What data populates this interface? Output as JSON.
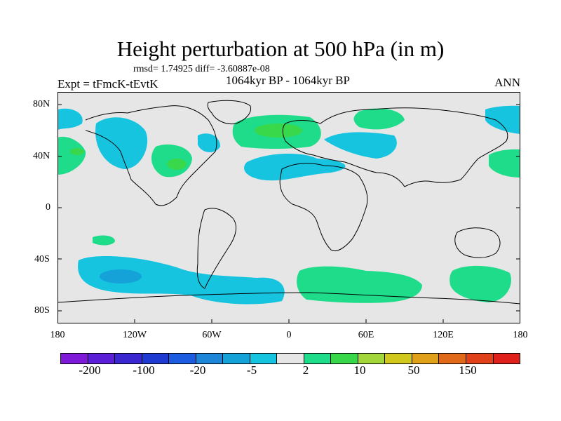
{
  "title": "Height perturbation at 500 hPa (in m)",
  "rmsd_line": "rmsd= 1.74925  diff= -3.60887e-08",
  "expt_label": "Expt = tFmcK-tEvtK",
  "period_label": "1064kyr BP - 1064kyr BP",
  "season_label": "ANN",
  "lat_labels": [
    "80N",
    "40N",
    "0",
    "40S",
    "80S"
  ],
  "lon_labels": [
    "180",
    "120W",
    "60W",
    "0",
    "60E",
    "120E",
    "180"
  ],
  "colorbar": {
    "colors": [
      "#7f1bd8",
      "#5a1fd6",
      "#3b27cf",
      "#1f3ad0",
      "#1c5ce0",
      "#1d86d9",
      "#15a2d8",
      "#17c4e0",
      "#e6e6e6",
      "#1edc8a",
      "#39d84a",
      "#a2d63a",
      "#d0c81c",
      "#e0a01a",
      "#e06a1a",
      "#e0401a",
      "#e0201a"
    ],
    "labels": [
      "-200",
      "-100",
      "-20",
      "-5",
      "2",
      "10",
      "50",
      "150"
    ]
  },
  "colors": {
    "map_background": "#e6e6e6",
    "positive_light": "#1edc8a",
    "positive_strong": "#39d84a",
    "negative_light": "#17c4e0",
    "negative_strong": "#15a2d8"
  }
}
